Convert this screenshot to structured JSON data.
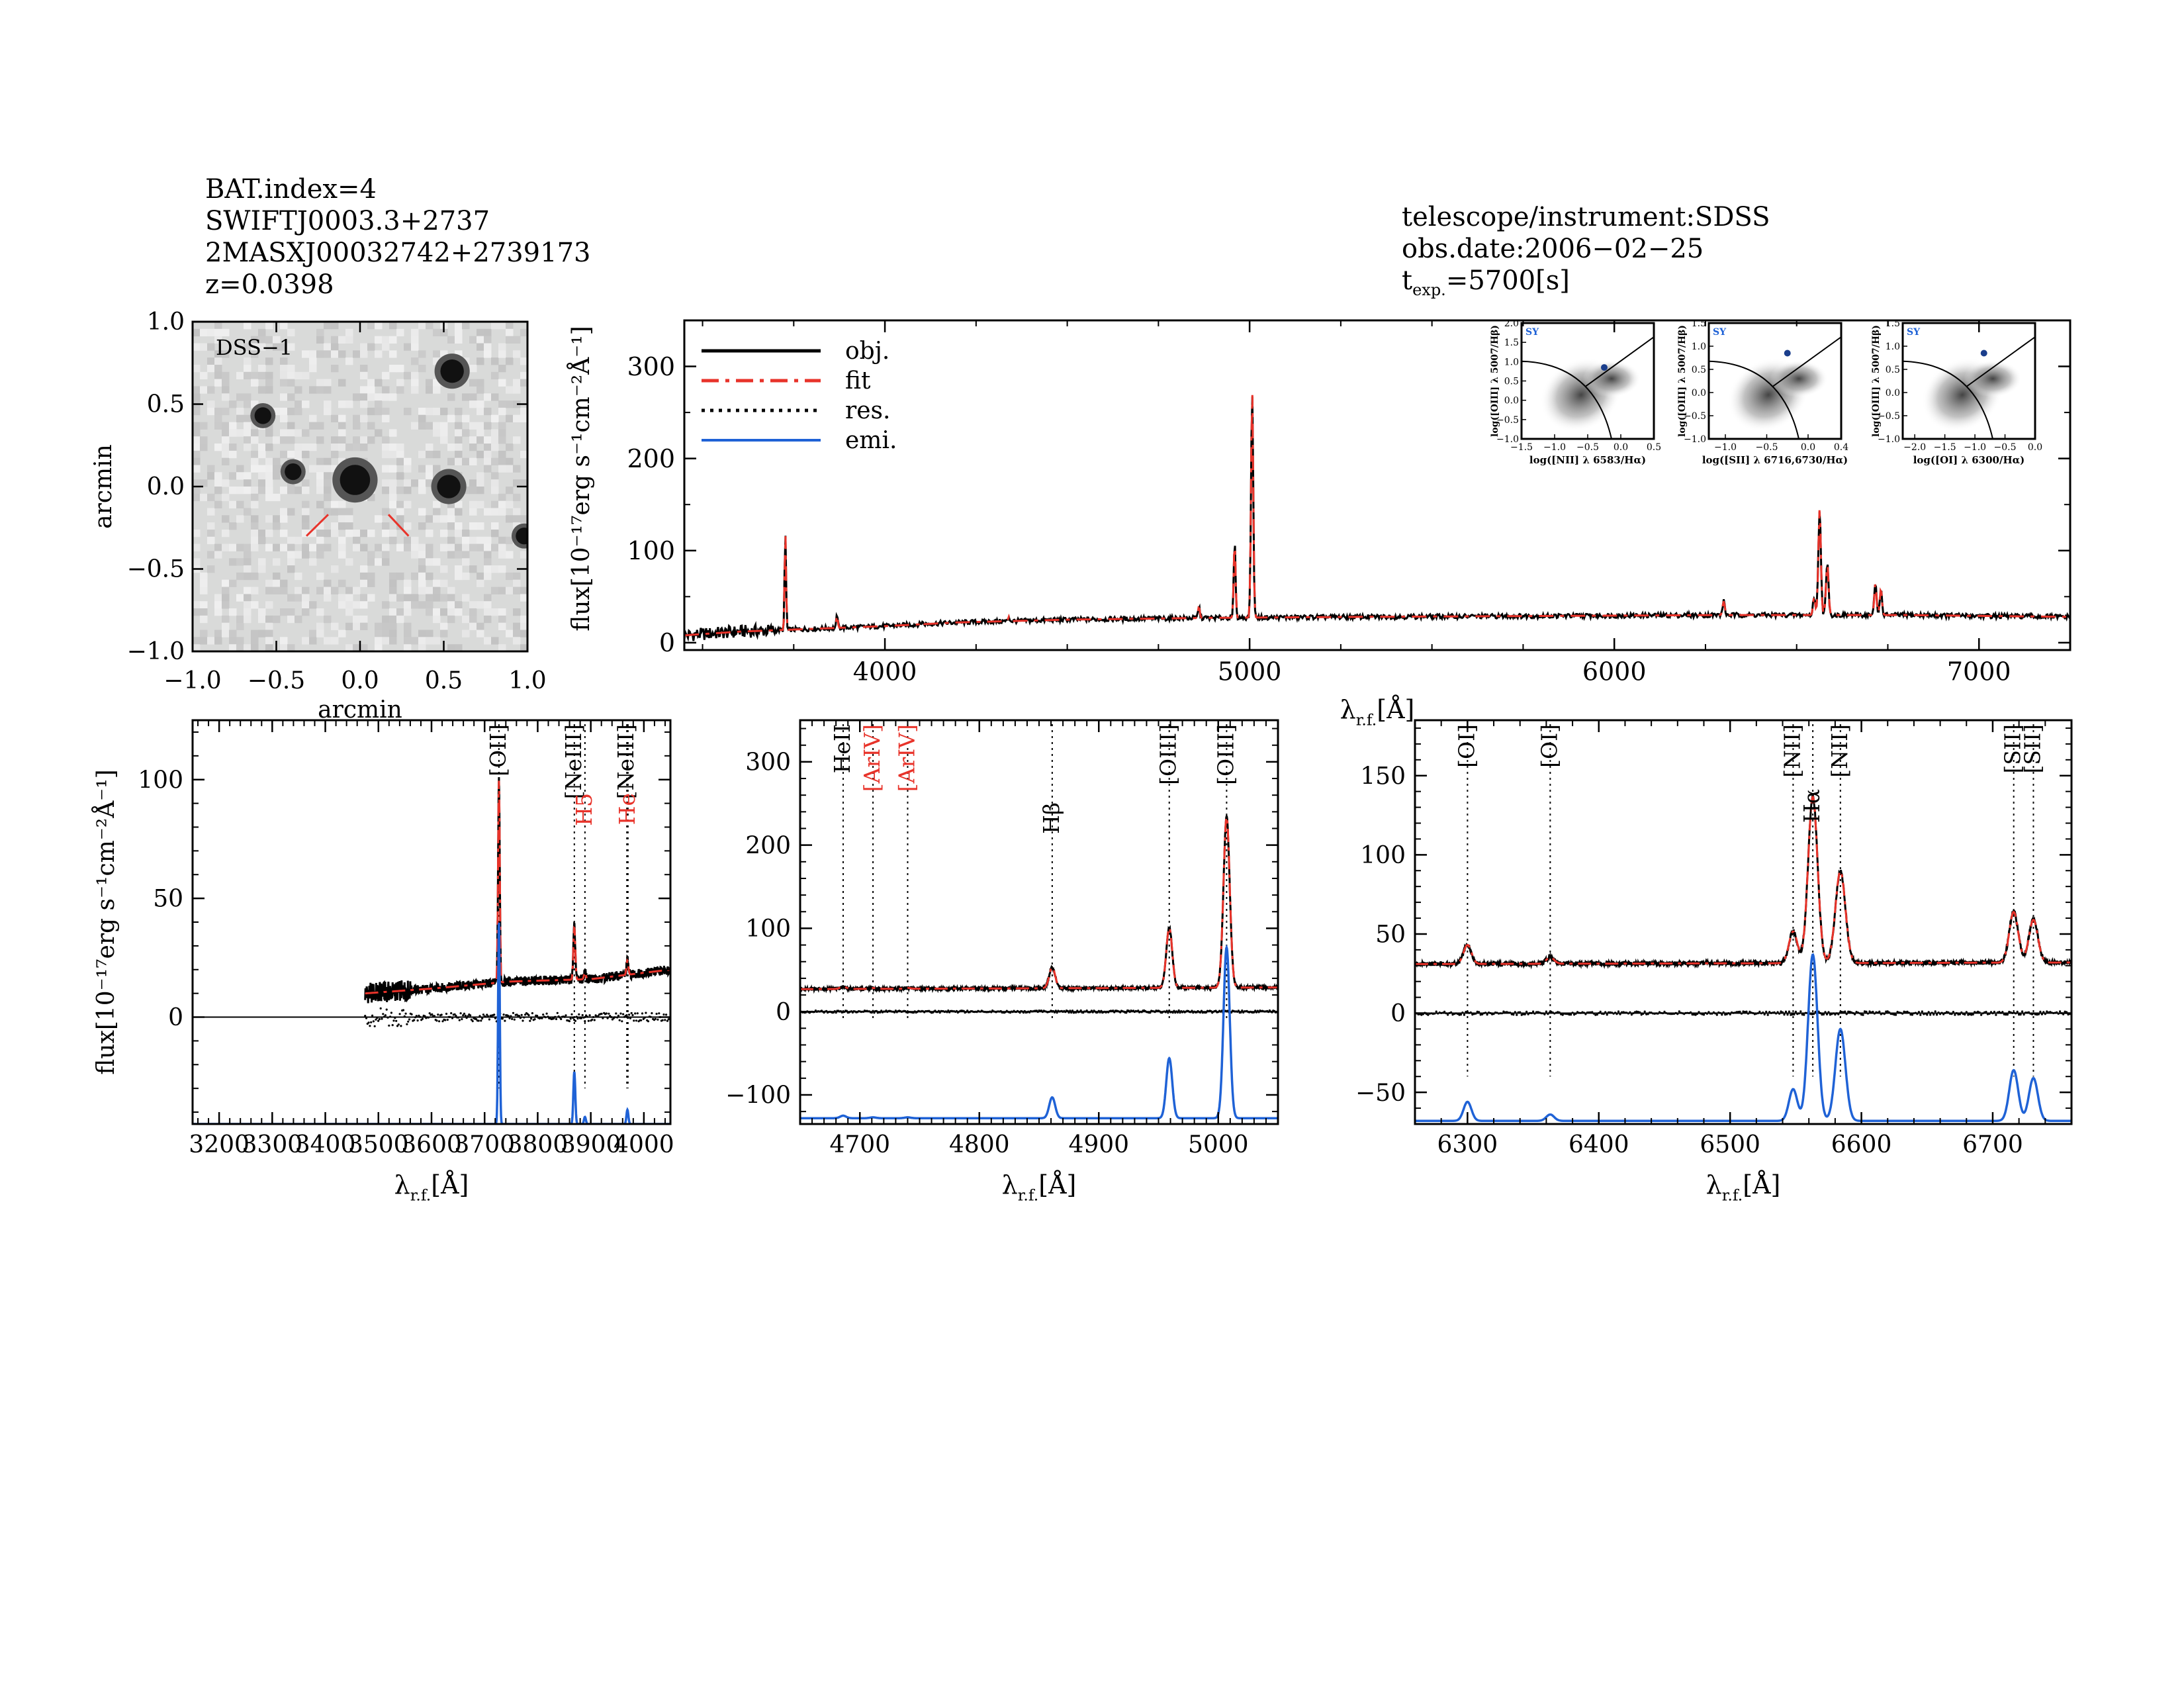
{
  "header_left": {
    "line1": "BAT.index=4",
    "line2": "SWIFTJ0003.3+2737",
    "line3": "2MASXJ00032742+2739173",
    "line4": "z=0.0398"
  },
  "header_right": {
    "line1": "telescope/instrument:SDSS",
    "line2": "obs.date:2006−02−25",
    "texp_label": "t",
    "texp_sub": "exp.",
    "texp_value": "=5700[s]"
  },
  "colors": {
    "obj": "#000000",
    "fit": "#e8332a",
    "res": "#000000",
    "emi": "#1f62d6",
    "image_bg": "#d9dad9"
  },
  "chart_data": [
    {
      "id": "dss_image",
      "type": "image",
      "label": "DSS−1",
      "xlabel": "arcmin",
      "ylabel": "arcmin",
      "xlim": [
        -1.0,
        1.0
      ],
      "ylim": [
        -1.0,
        1.0
      ],
      "xticks": [
        "−1.0",
        "−0.5",
        "0.0",
        "0.5",
        "1.0"
      ],
      "yticks": [
        "1.0",
        "0.5",
        "0.0",
        "−0.5",
        "−1.0"
      ],
      "sources": [
        {
          "x": 0.55,
          "y": 0.7,
          "size": 0.07
        },
        {
          "x": -0.58,
          "y": 0.43,
          "size": 0.05
        },
        {
          "x": -0.4,
          "y": 0.09,
          "size": 0.05
        },
        {
          "x": -0.03,
          "y": 0.04,
          "size": 0.09
        },
        {
          "x": 0.53,
          "y": 0.0,
          "size": 0.07
        },
        {
          "x": 0.98,
          "y": -0.3,
          "size": 0.05
        }
      ],
      "markers": [
        {
          "x1": -0.32,
          "y1": -0.3,
          "x2": -0.19,
          "y2": -0.17
        },
        {
          "x1": 0.17,
          "y1": -0.17,
          "x2": 0.29,
          "y2": -0.3
        }
      ]
    },
    {
      "id": "full_spectrum",
      "type": "line",
      "xlabel": "λ",
      "xlabel_sub": "r.f.",
      "xlabel_unit": "[Å]",
      "ylabel": "flux[10⁻¹⁷erg s⁻¹cm⁻²Å⁻¹]",
      "xlim": [
        3450,
        7250
      ],
      "ylim": [
        -8,
        350
      ],
      "xticks": [
        4000,
        5000,
        6000,
        7000
      ],
      "yticks": [
        0,
        100,
        200,
        300
      ],
      "legend": {
        "placement": "top-left",
        "entries": [
          "obj.",
          "fit",
          "res.",
          "emi."
        ]
      },
      "continuum": [
        [
          3450,
          8
        ],
        [
          3600,
          12
        ],
        [
          3800,
          15
        ],
        [
          4000,
          18
        ],
        [
          4200,
          22
        ],
        [
          4500,
          25
        ],
        [
          4900,
          27
        ],
        [
          5300,
          28
        ],
        [
          5800,
          29
        ],
        [
          6300,
          30
        ],
        [
          6800,
          30
        ],
        [
          7250,
          28
        ]
      ],
      "lines": [
        [
          3727,
          105,
          2.0
        ],
        [
          3869,
          15,
          2.0
        ],
        [
          4102,
          3,
          2.0
        ],
        [
          4340,
          5,
          2.0
        ],
        [
          4861,
          12,
          2.5
        ],
        [
          4959,
          82,
          2.5
        ],
        [
          5007,
          245,
          3.0
        ],
        [
          6300,
          15,
          3.0
        ],
        [
          6548,
          20,
          3.0
        ],
        [
          6563,
          115,
          3.5
        ],
        [
          6584,
          55,
          3.5
        ],
        [
          6716,
          35,
          3.0
        ],
        [
          6731,
          28,
          3.0
        ]
      ]
    },
    {
      "id": "bpt_nii",
      "type": "scatter",
      "class_label": "SY",
      "xlabel": "log([NII] λ 6583/Hα)",
      "ylabel": "log([OIII] λ 5007/Hβ)",
      "xlim": [
        -1.5,
        0.5
      ],
      "ylim": [
        -1.0,
        2.0
      ],
      "xticks": [
        "−1.5",
        "−1.0",
        "−0.5",
        "0.0",
        "0.5"
      ],
      "yticks": [
        "2.0",
        "1.5",
        "1.0",
        "0.5",
        "0.0",
        "−0.5",
        "−1.0"
      ],
      "point": {
        "x": -0.25,
        "y": 0.85
      }
    },
    {
      "id": "bpt_sii",
      "type": "scatter",
      "class_label": "SY",
      "xlabel": "log([SII] λ 6716,6730/Hα)",
      "ylabel": "log([OIII] λ 5007/Hβ)",
      "xlim": [
        -1.2,
        0.4
      ],
      "ylim": [
        -1.0,
        1.5
      ],
      "xticks": [
        "−1.0",
        "−0.5",
        "0.0",
        "0.4"
      ],
      "yticks": [
        "1.5",
        "1.0",
        "0.5",
        "0.0",
        "−0.5",
        "−1.0"
      ],
      "point": {
        "x": -0.25,
        "y": 0.85
      }
    },
    {
      "id": "bpt_oi",
      "type": "scatter",
      "class_label": "SY",
      "xlabel": "log([OI] λ 6300/Hα)",
      "ylabel": "log([OIII] λ 5007/Hβ)",
      "xlim": [
        -2.2,
        0.0
      ],
      "ylim": [
        -1.0,
        1.5
      ],
      "xticks": [
        "−2.0",
        "−1.5",
        "−1.0",
        "−0.5",
        "0.0"
      ],
      "yticks": [
        "1.5",
        "1.0",
        "0.5",
        "0.0",
        "−0.5",
        "−1.0"
      ],
      "point": {
        "x": -0.85,
        "y": 0.85
      }
    },
    {
      "id": "zoom_oii",
      "type": "line",
      "xlabel": "λ",
      "xlabel_sub": "r.f.",
      "xlabel_unit": "[Å]",
      "ylabel": "flux[10⁻¹⁷erg s⁻¹cm⁻²Å⁻¹]",
      "xlim": [
        3150,
        4050
      ],
      "ylim": [
        -45,
        125
      ],
      "xticks": [
        3200,
        3300,
        3400,
        3500,
        3600,
        3700,
        3800,
        3900,
        4000
      ],
      "yticks": [
        0,
        50,
        100
      ],
      "data_start": 3475,
      "continuum": [
        [
          3475,
          10
        ],
        [
          3600,
          12
        ],
        [
          3750,
          15
        ],
        [
          3900,
          16
        ],
        [
          4050,
          20
        ]
      ],
      "lines": [
        [
          3727,
          85,
          1.6
        ],
        [
          3869,
          22,
          1.8
        ],
        [
          3889,
          3,
          1.8
        ],
        [
          3969,
          6,
          1.8
        ]
      ],
      "emi_base": -45,
      "annotations": [
        {
          "x": 3727,
          "text": "[OII]",
          "color": "#000000"
        },
        {
          "x": 3869,
          "text": "[NeIII]",
          "color": "#000000"
        },
        {
          "x": 3889,
          "text": "H5",
          "color": "#e8332a"
        },
        {
          "x": 3968,
          "text": "[NeIII]",
          "color": "#000000"
        },
        {
          "x": 3970,
          "text": "He",
          "color": "#e8332a"
        }
      ]
    },
    {
      "id": "zoom_hb_oiii",
      "type": "line",
      "xlabel": "λ",
      "xlabel_sub": "r.f.",
      "xlabel_unit": "[Å]",
      "xlim": [
        4650,
        5050
      ],
      "ylim": [
        -135,
        350
      ],
      "xticks": [
        4700,
        4800,
        4900,
        5000
      ],
      "yticks": [
        -100,
        0,
        100,
        200,
        300
      ],
      "data_start": 4650,
      "continuum": [
        [
          4650,
          27
        ],
        [
          5050,
          29
        ]
      ],
      "lines": [
        [
          4686,
          3,
          2.5
        ],
        [
          4711,
          1,
          2.5
        ],
        [
          4740,
          1,
          2.5
        ],
        [
          4861,
          25,
          2.5
        ],
        [
          4959,
          72,
          2.5
        ],
        [
          5007,
          205,
          2.6
        ]
      ],
      "emi_base": -128,
      "annotations": [
        {
          "x": 4686,
          "text": "HeII",
          "color": "#000000"
        },
        {
          "x": 4711,
          "text": "[ArIV]",
          "color": "#e8332a"
        },
        {
          "x": 4740,
          "text": "[ArIV]",
          "color": "#e8332a"
        },
        {
          "x": 4861,
          "text": "Hβ",
          "color": "#000000"
        },
        {
          "x": 4959,
          "text": "[OIII]",
          "color": "#000000"
        },
        {
          "x": 5007,
          "text": "[OIII]",
          "color": "#000000"
        }
      ]
    },
    {
      "id": "zoom_ha_nii",
      "type": "line",
      "xlabel": "λ",
      "xlabel_sub": "r.f.",
      "xlabel_unit": "[Å]",
      "xlim": [
        6260,
        6760
      ],
      "ylim": [
        -70,
        185
      ],
      "xticks": [
        6300,
        6400,
        6500,
        6600,
        6700
      ],
      "yticks": [
        -50,
        0,
        50,
        100,
        150
      ],
      "data_start": 6260,
      "continuum": [
        [
          6260,
          31
        ],
        [
          6760,
          32
        ]
      ],
      "lines": [
        [
          6300,
          12,
          3.0
        ],
        [
          6363,
          4,
          3.0
        ],
        [
          6548,
          20,
          3.2
        ],
        [
          6563,
          105,
          3.6
        ],
        [
          6584,
          58,
          3.8
        ],
        [
          6716,
          32,
          3.4
        ],
        [
          6731,
          27,
          3.4
        ]
      ],
      "emi_base": -68,
      "annotations": [
        {
          "x": 6300,
          "text": "[OI]",
          "color": "#000000"
        },
        {
          "x": 6363,
          "text": "[OI]",
          "color": "#000000"
        },
        {
          "x": 6548,
          "text": "[NII]",
          "color": "#000000"
        },
        {
          "x": 6563,
          "text": "Hα",
          "color": "#000000"
        },
        {
          "x": 6584,
          "text": "[NII]",
          "color": "#000000"
        },
        {
          "x": 6716,
          "text": "[SII]",
          "color": "#000000"
        },
        {
          "x": 6731,
          "text": "[SII]",
          "color": "#000000"
        }
      ]
    }
  ]
}
